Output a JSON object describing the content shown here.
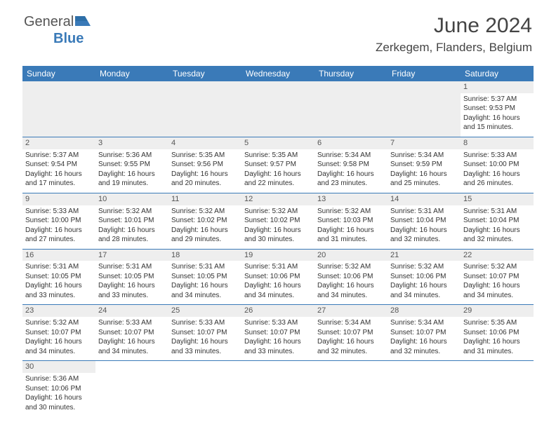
{
  "brand": {
    "part1": "General",
    "part2": "Blue"
  },
  "title": "June 2024",
  "location": "Zerkegem, Flanders, Belgium",
  "colors": {
    "header_bg": "#3a7ab8",
    "header_text": "#ffffff",
    "daynum_bg": "#eeeeee",
    "border": "#3a7ab8",
    "text": "#333333",
    "background": "#ffffff"
  },
  "weekdays": [
    "Sunday",
    "Monday",
    "Tuesday",
    "Wednesday",
    "Thursday",
    "Friday",
    "Saturday"
  ],
  "weeks": [
    [
      null,
      null,
      null,
      null,
      null,
      null,
      {
        "n": "1",
        "sr": "Sunrise: 5:37 AM",
        "ss": "Sunset: 9:53 PM",
        "d1": "Daylight: 16 hours",
        "d2": "and 15 minutes."
      }
    ],
    [
      {
        "n": "2",
        "sr": "Sunrise: 5:37 AM",
        "ss": "Sunset: 9:54 PM",
        "d1": "Daylight: 16 hours",
        "d2": "and 17 minutes."
      },
      {
        "n": "3",
        "sr": "Sunrise: 5:36 AM",
        "ss": "Sunset: 9:55 PM",
        "d1": "Daylight: 16 hours",
        "d2": "and 19 minutes."
      },
      {
        "n": "4",
        "sr": "Sunrise: 5:35 AM",
        "ss": "Sunset: 9:56 PM",
        "d1": "Daylight: 16 hours",
        "d2": "and 20 minutes."
      },
      {
        "n": "5",
        "sr": "Sunrise: 5:35 AM",
        "ss": "Sunset: 9:57 PM",
        "d1": "Daylight: 16 hours",
        "d2": "and 22 minutes."
      },
      {
        "n": "6",
        "sr": "Sunrise: 5:34 AM",
        "ss": "Sunset: 9:58 PM",
        "d1": "Daylight: 16 hours",
        "d2": "and 23 minutes."
      },
      {
        "n": "7",
        "sr": "Sunrise: 5:34 AM",
        "ss": "Sunset: 9:59 PM",
        "d1": "Daylight: 16 hours",
        "d2": "and 25 minutes."
      },
      {
        "n": "8",
        "sr": "Sunrise: 5:33 AM",
        "ss": "Sunset: 10:00 PM",
        "d1": "Daylight: 16 hours",
        "d2": "and 26 minutes."
      }
    ],
    [
      {
        "n": "9",
        "sr": "Sunrise: 5:33 AM",
        "ss": "Sunset: 10:00 PM",
        "d1": "Daylight: 16 hours",
        "d2": "and 27 minutes."
      },
      {
        "n": "10",
        "sr": "Sunrise: 5:32 AM",
        "ss": "Sunset: 10:01 PM",
        "d1": "Daylight: 16 hours",
        "d2": "and 28 minutes."
      },
      {
        "n": "11",
        "sr": "Sunrise: 5:32 AM",
        "ss": "Sunset: 10:02 PM",
        "d1": "Daylight: 16 hours",
        "d2": "and 29 minutes."
      },
      {
        "n": "12",
        "sr": "Sunrise: 5:32 AM",
        "ss": "Sunset: 10:02 PM",
        "d1": "Daylight: 16 hours",
        "d2": "and 30 minutes."
      },
      {
        "n": "13",
        "sr": "Sunrise: 5:32 AM",
        "ss": "Sunset: 10:03 PM",
        "d1": "Daylight: 16 hours",
        "d2": "and 31 minutes."
      },
      {
        "n": "14",
        "sr": "Sunrise: 5:31 AM",
        "ss": "Sunset: 10:04 PM",
        "d1": "Daylight: 16 hours",
        "d2": "and 32 minutes."
      },
      {
        "n": "15",
        "sr": "Sunrise: 5:31 AM",
        "ss": "Sunset: 10:04 PM",
        "d1": "Daylight: 16 hours",
        "d2": "and 32 minutes."
      }
    ],
    [
      {
        "n": "16",
        "sr": "Sunrise: 5:31 AM",
        "ss": "Sunset: 10:05 PM",
        "d1": "Daylight: 16 hours",
        "d2": "and 33 minutes."
      },
      {
        "n": "17",
        "sr": "Sunrise: 5:31 AM",
        "ss": "Sunset: 10:05 PM",
        "d1": "Daylight: 16 hours",
        "d2": "and 33 minutes."
      },
      {
        "n": "18",
        "sr": "Sunrise: 5:31 AM",
        "ss": "Sunset: 10:05 PM",
        "d1": "Daylight: 16 hours",
        "d2": "and 34 minutes."
      },
      {
        "n": "19",
        "sr": "Sunrise: 5:31 AM",
        "ss": "Sunset: 10:06 PM",
        "d1": "Daylight: 16 hours",
        "d2": "and 34 minutes."
      },
      {
        "n": "20",
        "sr": "Sunrise: 5:32 AM",
        "ss": "Sunset: 10:06 PM",
        "d1": "Daylight: 16 hours",
        "d2": "and 34 minutes."
      },
      {
        "n": "21",
        "sr": "Sunrise: 5:32 AM",
        "ss": "Sunset: 10:06 PM",
        "d1": "Daylight: 16 hours",
        "d2": "and 34 minutes."
      },
      {
        "n": "22",
        "sr": "Sunrise: 5:32 AM",
        "ss": "Sunset: 10:07 PM",
        "d1": "Daylight: 16 hours",
        "d2": "and 34 minutes."
      }
    ],
    [
      {
        "n": "23",
        "sr": "Sunrise: 5:32 AM",
        "ss": "Sunset: 10:07 PM",
        "d1": "Daylight: 16 hours",
        "d2": "and 34 minutes."
      },
      {
        "n": "24",
        "sr": "Sunrise: 5:33 AM",
        "ss": "Sunset: 10:07 PM",
        "d1": "Daylight: 16 hours",
        "d2": "and 34 minutes."
      },
      {
        "n": "25",
        "sr": "Sunrise: 5:33 AM",
        "ss": "Sunset: 10:07 PM",
        "d1": "Daylight: 16 hours",
        "d2": "and 33 minutes."
      },
      {
        "n": "26",
        "sr": "Sunrise: 5:33 AM",
        "ss": "Sunset: 10:07 PM",
        "d1": "Daylight: 16 hours",
        "d2": "and 33 minutes."
      },
      {
        "n": "27",
        "sr": "Sunrise: 5:34 AM",
        "ss": "Sunset: 10:07 PM",
        "d1": "Daylight: 16 hours",
        "d2": "and 32 minutes."
      },
      {
        "n": "28",
        "sr": "Sunrise: 5:34 AM",
        "ss": "Sunset: 10:07 PM",
        "d1": "Daylight: 16 hours",
        "d2": "and 32 minutes."
      },
      {
        "n": "29",
        "sr": "Sunrise: 5:35 AM",
        "ss": "Sunset: 10:06 PM",
        "d1": "Daylight: 16 hours",
        "d2": "and 31 minutes."
      }
    ],
    [
      {
        "n": "30",
        "sr": "Sunrise: 5:36 AM",
        "ss": "Sunset: 10:06 PM",
        "d1": "Daylight: 16 hours",
        "d2": "and 30 minutes."
      },
      null,
      null,
      null,
      null,
      null,
      null
    ]
  ]
}
